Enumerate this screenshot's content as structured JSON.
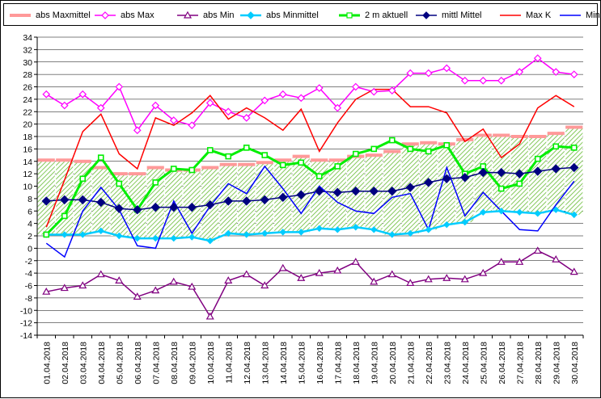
{
  "chart_data": {
    "type": "line",
    "x": [
      "01.04.2018",
      "02.04.2018",
      "03.04.2018",
      "04.04.2018",
      "05.04.2018",
      "06.04.2018",
      "07.04.2018",
      "08.04.2018",
      "09.04.2018",
      "10.04.2018",
      "11.04.2018",
      "12.04.2018",
      "13.04.2018",
      "14.04.2018",
      "15.04.2018",
      "16.04.2018",
      "17.04.2018",
      "18.04.2018",
      "19.04.2018",
      "20.04.2018",
      "21.04.2018",
      "22.04.2018",
      "23.04.2018",
      "24.04.2018",
      "25.04.2018",
      "26.04.2018",
      "27.04.2018",
      "28.04.2018",
      "29.04.2018",
      "30.04.2018"
    ],
    "ylim": [
      -14,
      34
    ],
    "yticks": [
      -14,
      -12,
      -10,
      -8,
      -6,
      -4,
      -2,
      0,
      2,
      4,
      6,
      8,
      10,
      12,
      14,
      16,
      18,
      20,
      22,
      24,
      26,
      28,
      30,
      32,
      34
    ],
    "grid": "horizontal",
    "legend": "top",
    "series": [
      {
        "name": "abs Maxmittel",
        "color": "#ff9999",
        "style": "band-top",
        "values": [
          14.2,
          14.2,
          14.0,
          13.0,
          12.0,
          12.0,
          13.0,
          12.6,
          12.6,
          13.0,
          13.5,
          13.5,
          13.8,
          14.2,
          14.8,
          14.2,
          14.2,
          14.8,
          15.0,
          15.6,
          16.8,
          17.0,
          16.8,
          17.5,
          18.2,
          18.2,
          18.0,
          18.0,
          18.5,
          19.5
        ]
      },
      {
        "name": "abs Max",
        "color": "#ff00ff",
        "marker": "diamond-open",
        "values": [
          24.8,
          23.0,
          24.8,
          22.6,
          26.0,
          19.0,
          23.0,
          20.6,
          19.8,
          23.4,
          22.0,
          21.0,
          23.8,
          24.8,
          24.2,
          25.8,
          22.6,
          26.0,
          25.2,
          25.4,
          28.2,
          28.2,
          29.0,
          27.0,
          27.0,
          27.0,
          28.4,
          30.6,
          28.4,
          28.0
        ]
      },
      {
        "name": "abs Min",
        "color": "#800080",
        "marker": "triangle-open",
        "values": [
          -7.0,
          -6.4,
          -6.0,
          -4.2,
          -5.2,
          -7.8,
          -6.8,
          -5.4,
          -6.2,
          -11.0,
          -5.2,
          -4.2,
          -6.0,
          -3.2,
          -4.8,
          -4.0,
          -3.6,
          -2.2,
          -5.4,
          -4.2,
          -5.6,
          -5.0,
          -4.8,
          -5.0,
          -4.0,
          -2.2,
          -2.2,
          -0.4,
          -1.8,
          -3.8
        ]
      },
      {
        "name": "abs Minmittel",
        "color": "#00ccff",
        "marker": "diamond",
        "values": [
          2.2,
          2.2,
          2.2,
          2.8,
          2.0,
          1.6,
          1.6,
          1.6,
          1.8,
          1.2,
          2.4,
          2.2,
          2.4,
          2.6,
          2.6,
          3.2,
          3.0,
          3.4,
          3.0,
          2.2,
          2.4,
          3.0,
          3.8,
          4.2,
          5.8,
          6.0,
          5.8,
          5.6,
          6.2,
          5.4
        ]
      },
      {
        "name": "2 m aktuell",
        "color": "#00ee00",
        "marker": "square-open",
        "values": [
          2.2,
          5.2,
          11.2,
          14.6,
          10.4,
          6.2,
          10.6,
          12.8,
          12.6,
          15.8,
          14.8,
          16.2,
          15.0,
          13.4,
          13.8,
          11.6,
          13.2,
          15.2,
          16.0,
          17.4,
          16.0,
          15.6,
          16.6,
          12.0,
          13.2,
          9.6,
          10.4,
          14.4,
          16.4,
          16.2
        ]
      },
      {
        "name": "mittl Mittel",
        "color": "#000080",
        "marker": "diamond",
        "values": [
          7.6,
          7.8,
          7.8,
          7.4,
          6.4,
          6.2,
          6.6,
          6.6,
          6.6,
          7.0,
          7.6,
          7.6,
          7.8,
          8.2,
          8.6,
          9.2,
          9.0,
          9.2,
          9.2,
          9.2,
          9.8,
          10.6,
          11.2,
          11.4,
          12.2,
          12.2,
          12.0,
          12.4,
          12.8,
          13.0
        ]
      },
      {
        "name": "Max K",
        "color": "#ff0000",
        "values": [
          3.4,
          11.0,
          18.8,
          21.6,
          15.2,
          12.8,
          21.0,
          19.8,
          21.8,
          24.6,
          20.8,
          22.6,
          21.0,
          19.0,
          22.4,
          15.6,
          20.2,
          24.0,
          25.6,
          25.6,
          22.8,
          22.8,
          21.8,
          17.2,
          19.2,
          14.6,
          16.8,
          22.6,
          24.6,
          22.8
        ]
      },
      {
        "name": "Min K",
        "color": "#0000ff",
        "values": [
          0.8,
          -1.4,
          6.0,
          9.8,
          6.2,
          0.4,
          0.0,
          7.6,
          2.4,
          6.8,
          10.4,
          8.8,
          13.2,
          9.6,
          5.6,
          10.0,
          7.4,
          6.0,
          5.6,
          8.2,
          8.8,
          3.0,
          13.0,
          5.2,
          9.0,
          6.0,
          3.0,
          2.8,
          7.0,
          10.8
        ]
      }
    ]
  }
}
